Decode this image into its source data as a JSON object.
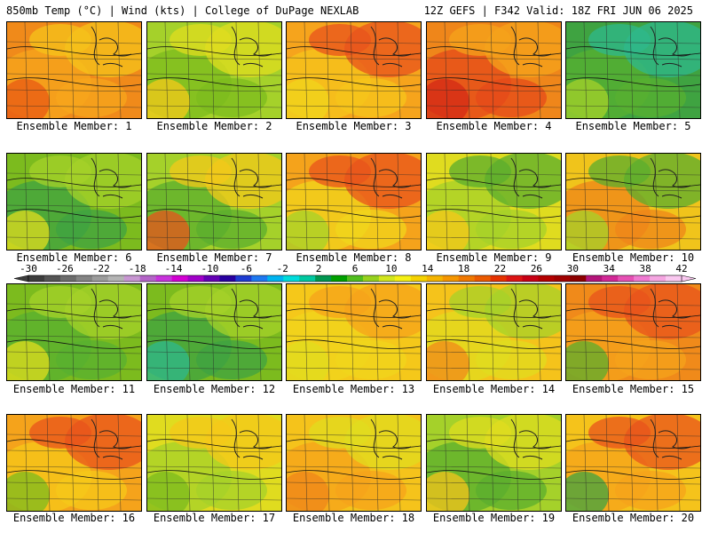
{
  "header": {
    "left": "850mb Temp (°C) | Wind (kts) | College of DuPage NEXLAB",
    "right": "12Z GEFS | F342 Valid: 18Z FRI JUN 06 2025"
  },
  "members": [
    {
      "label": "Ensemble Member: 1",
      "palette": [
        "#f08a1a",
        "#f7a51c",
        "#f5c31b",
        "#e85a14"
      ]
    },
    {
      "label": "Ensemble Member: 2",
      "palette": [
        "#a5d12a",
        "#7cbb1e",
        "#e0dc1f",
        "#f4c81a"
      ]
    },
    {
      "label": "Ensemble Member: 3",
      "palette": [
        "#f6a41c",
        "#f6c51b",
        "#e8531c",
        "#f0d51c"
      ]
    },
    {
      "label": "Ensemble Member: 4",
      "palette": [
        "#ef861a",
        "#e64a19",
        "#f5a31b",
        "#d42a16"
      ]
    },
    {
      "label": "Ensemble Member: 5",
      "palette": [
        "#3fa341",
        "#58b030",
        "#2fb88c",
        "#a5d12a"
      ]
    },
    {
      "label": "Ensemble Member: 6",
      "palette": [
        "#7cbb1e",
        "#3fa341",
        "#a5d12a",
        "#e0dc1f"
      ]
    },
    {
      "label": "Ensemble Member: 7",
      "palette": [
        "#a5d12a",
        "#5bae2e",
        "#f4c81a",
        "#e8531c"
      ]
    },
    {
      "label": "Ensemble Member: 8",
      "palette": [
        "#f5a31b",
        "#f0d51c",
        "#e8531c",
        "#a5d12a"
      ]
    },
    {
      "label": "Ensemble Member: 9",
      "palette": [
        "#e0dc1f",
        "#a5d12a",
        "#5bae2e",
        "#f5c81a"
      ]
    },
    {
      "label": "Ensemble Member: 10",
      "palette": [
        "#f0c41b",
        "#ef861a",
        "#5bae2e",
        "#a5d12a"
      ]
    },
    {
      "label": "Ensemble Member: 11",
      "palette": [
        "#7cbb1e",
        "#58b030",
        "#a5d12a",
        "#e0dc1f"
      ]
    },
    {
      "label": "Ensemble Member: 12",
      "palette": [
        "#7cbb1e",
        "#3fa341",
        "#a5d12a",
        "#2fb88c"
      ]
    },
    {
      "label": "Ensemble Member: 13",
      "palette": [
        "#f5c81a",
        "#f0d51c",
        "#f5a31b",
        "#e0dc1f"
      ]
    },
    {
      "label": "Ensemble Member: 14",
      "palette": [
        "#f5c31b",
        "#e0dc1f",
        "#a5d12a",
        "#f08a1a"
      ]
    },
    {
      "label": "Ensemble Member: 15",
      "palette": [
        "#f08a1a",
        "#f5a31b",
        "#e8531c",
        "#5bae2e"
      ]
    },
    {
      "label": "Ensemble Member: 16",
      "palette": [
        "#f5a31b",
        "#f5c81a",
        "#e8531c",
        "#7cbb1e"
      ]
    },
    {
      "label": "Ensemble Member: 17",
      "palette": [
        "#e0dc1f",
        "#a5d12a",
        "#f5c81a",
        "#7cbb1e"
      ]
    },
    {
      "label": "Ensemble Member: 18",
      "palette": [
        "#f5c31b",
        "#f5a31b",
        "#e0dc1f",
        "#ef861a"
      ]
    },
    {
      "label": "Ensemble Member: 19",
      "palette": [
        "#a5d12a",
        "#5bae2e",
        "#e0dc1f",
        "#f5c31b"
      ]
    },
    {
      "label": "Ensemble Member: 20",
      "palette": [
        "#f5c31b",
        "#f5a31b",
        "#e8531c",
        "#3fa341"
      ]
    }
  ],
  "colorbar": {
    "ticks": [
      "-30",
      "-26",
      "-22",
      "-18",
      "-14",
      "-10",
      "-6",
      "-2",
      "2",
      "6",
      "10",
      "14",
      "18",
      "22",
      "26",
      "30",
      "34",
      "38",
      "42"
    ],
    "colors": [
      "#3c3c3c",
      "#545454",
      "#6c6c6c",
      "#848484",
      "#9c9c9c",
      "#b4b4b4",
      "#c896d2",
      "#b464c8",
      "#c832dc",
      "#d200d2",
      "#a000c8",
      "#6400b4",
      "#2800a0",
      "#1e3cd2",
      "#1e78f0",
      "#00b4f0",
      "#00dcdc",
      "#00c8a0",
      "#009650",
      "#00a000",
      "#50be1e",
      "#96d21e",
      "#d2e61e",
      "#f5f014",
      "#f5d200",
      "#f5b400",
      "#f59600",
      "#f07800",
      "#eb5a00",
      "#e63200",
      "#dc1414",
      "#c80014",
      "#b40000",
      "#a00000",
      "#8c0000",
      "#b4147a",
      "#d22896",
      "#e650b4",
      "#f07ad2",
      "#f5a5e1",
      "#fac8f0"
    ]
  }
}
